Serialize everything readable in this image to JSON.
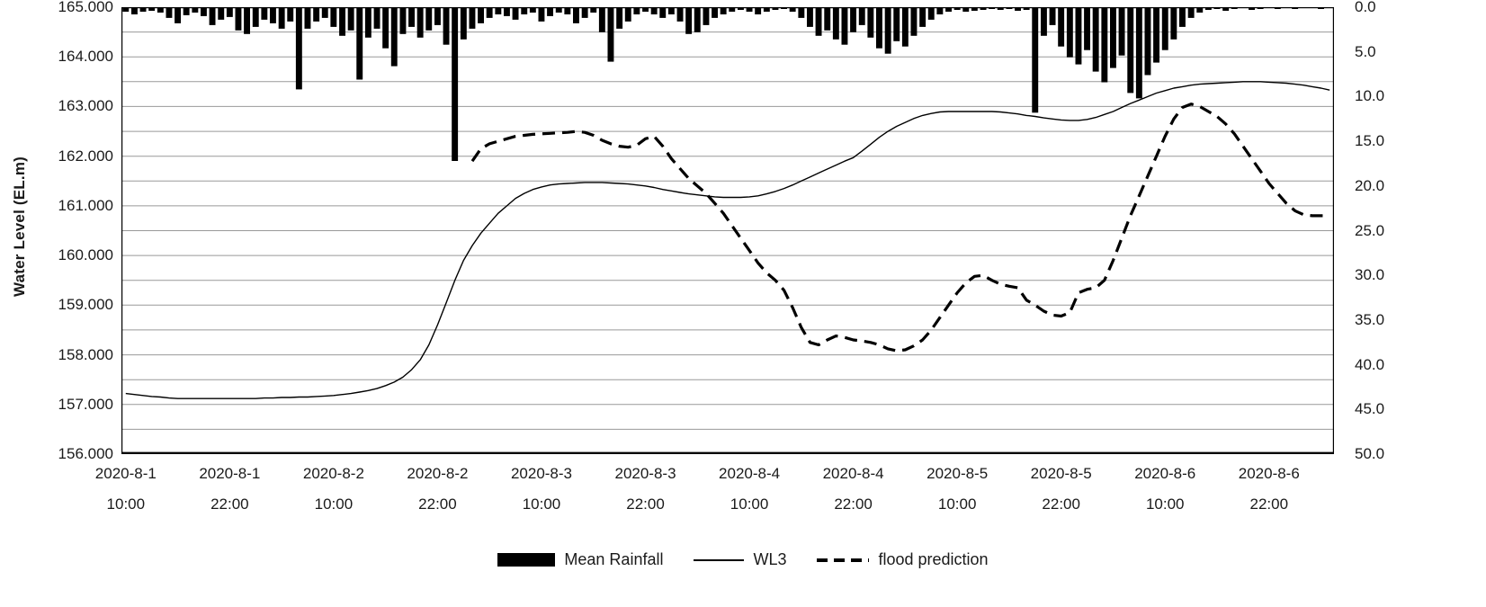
{
  "colors": {
    "grid": "#999999",
    "axis": "#000000",
    "series": "#000000",
    "background": "#ffffff",
    "text": "#1a1a1a"
  },
  "chart_data": {
    "type": "combo",
    "title": "",
    "grid": true,
    "legend_position": "bottom",
    "hours_total": 140,
    "tick_interval_hours": 12,
    "x_axis": {
      "start": "2020-8-1 10:00",
      "interval": "1 hour"
    },
    "left_axis": {
      "label": "Water Level (EL.m)",
      "min": 156,
      "max": 165,
      "gridline_step": 0.5,
      "ticks": [
        "165.000",
        "164.000",
        "163.000",
        "162.000",
        "161.000",
        "160.000",
        "159.000",
        "158.000",
        "157.000",
        "156.000"
      ]
    },
    "right_axis": {
      "label": "",
      "min": 0,
      "max": 50,
      "inverted": true,
      "ticks": [
        "0.0",
        "5.0",
        "10.0",
        "15.0",
        "20.0",
        "25.0",
        "30.0",
        "35.0",
        "40.0",
        "45.0",
        "50.0"
      ]
    },
    "x_ticks": [
      {
        "date": "2020-8-1",
        "time": "10:00"
      },
      {
        "date": "2020-8-1",
        "time": "22:00"
      },
      {
        "date": "2020-8-2",
        "time": "10:00"
      },
      {
        "date": "2020-8-2",
        "time": "22:00"
      },
      {
        "date": "2020-8-3",
        "time": "10:00"
      },
      {
        "date": "2020-8-3",
        "time": "22:00"
      },
      {
        "date": "2020-8-4",
        "time": "10:00"
      },
      {
        "date": "2020-8-4",
        "time": "22:00"
      },
      {
        "date": "2020-8-5",
        "time": "10:00"
      },
      {
        "date": "2020-8-5",
        "time": "22:00"
      },
      {
        "date": "2020-8-6",
        "time": "10:00"
      },
      {
        "date": "2020-8-6",
        "time": "22:00"
      }
    ],
    "series": [
      {
        "name": "Mean Rainfall",
        "type": "bar",
        "axis": "right",
        "color": "#000000",
        "values": [
          0.5,
          0.8,
          0.5,
          0.4,
          0.6,
          1.2,
          1.8,
          0.9,
          0.6,
          1.0,
          2.0,
          1.4,
          1.1,
          2.6,
          3.0,
          2.2,
          1.4,
          1.8,
          2.4,
          1.6,
          9.2,
          2.4,
          1.6,
          1.2,
          2.2,
          3.2,
          2.6,
          8.1,
          3.4,
          2.4,
          4.6,
          6.6,
          3.0,
          2.2,
          3.4,
          2.6,
          2.0,
          4.2,
          17.2,
          3.6,
          2.4,
          1.8,
          1.2,
          0.8,
          1.0,
          1.4,
          0.8,
          0.6,
          1.6,
          1.0,
          0.6,
          0.8,
          1.8,
          1.2,
          0.6,
          2.8,
          6.1,
          2.4,
          1.6,
          0.8,
          0.5,
          0.8,
          1.2,
          0.8,
          1.6,
          3.0,
          2.8,
          2.0,
          1.2,
          0.8,
          0.5,
          0.3,
          0.5,
          0.8,
          0.5,
          0.3,
          0.2,
          0.5,
          1.2,
          2.2,
          3.2,
          2.6,
          3.6,
          4.2,
          2.8,
          2.0,
          3.4,
          4.6,
          5.2,
          3.8,
          4.4,
          3.2,
          2.2,
          1.4,
          0.8,
          0.5,
          0.3,
          0.5,
          0.4,
          0.3,
          0.2,
          0.3,
          0.2,
          0.4,
          0.3,
          11.8,
          3.2,
          2.0,
          4.4,
          5.6,
          6.4,
          4.8,
          7.2,
          8.4,
          6.8,
          5.4,
          9.6,
          10.2,
          7.6,
          6.2,
          4.8,
          3.6,
          2.2,
          1.2,
          0.6,
          0.3,
          0.2,
          0.4,
          0.2,
          0.1,
          0.3,
          0.2,
          0.1,
          0.2,
          0.1,
          0.2,
          0.1,
          0.1,
          0.2,
          0.1
        ]
      },
      {
        "name": "WL3",
        "type": "line",
        "style": "solid",
        "axis": "left",
        "color": "#000000",
        "values": [
          157.22,
          157.2,
          157.18,
          157.16,
          157.15,
          157.13,
          157.12,
          157.12,
          157.12,
          157.12,
          157.12,
          157.12,
          157.12,
          157.12,
          157.12,
          157.12,
          157.13,
          157.13,
          157.14,
          157.14,
          157.15,
          157.15,
          157.16,
          157.17,
          157.18,
          157.2,
          157.22,
          157.25,
          157.28,
          157.32,
          157.38,
          157.45,
          157.55,
          157.7,
          157.9,
          158.2,
          158.6,
          159.05,
          159.5,
          159.9,
          160.2,
          160.45,
          160.65,
          160.85,
          161.0,
          161.15,
          161.25,
          161.33,
          161.38,
          161.42,
          161.44,
          161.45,
          161.46,
          161.47,
          161.47,
          161.47,
          161.46,
          161.45,
          161.44,
          161.42,
          161.4,
          161.37,
          161.33,
          161.3,
          161.27,
          161.24,
          161.22,
          161.2,
          161.18,
          161.17,
          161.17,
          161.17,
          161.18,
          161.2,
          161.24,
          161.29,
          161.35,
          161.42,
          161.5,
          161.58,
          161.66,
          161.74,
          161.82,
          161.9,
          161.97,
          162.1,
          162.24,
          162.38,
          162.5,
          162.6,
          162.68,
          162.76,
          162.82,
          162.86,
          162.89,
          162.9,
          162.9,
          162.9,
          162.9,
          162.9,
          162.9,
          162.89,
          162.87,
          162.85,
          162.82,
          162.8,
          162.77,
          162.75,
          162.73,
          162.72,
          162.72,
          162.74,
          162.78,
          162.84,
          162.9,
          162.98,
          163.06,
          163.13,
          163.2,
          163.27,
          163.32,
          163.37,
          163.4,
          163.43,
          163.45,
          163.46,
          163.47,
          163.48,
          163.49,
          163.5,
          163.5,
          163.5,
          163.49,
          163.48,
          163.47,
          163.45,
          163.43,
          163.4,
          163.37,
          163.33
        ]
      },
      {
        "name": "flood prediction",
        "type": "line",
        "style": "dashed",
        "axis": "left",
        "color": "#000000",
        "values": [
          null,
          null,
          null,
          null,
          null,
          null,
          null,
          null,
          null,
          null,
          null,
          null,
          null,
          null,
          null,
          null,
          null,
          null,
          null,
          null,
          null,
          null,
          null,
          null,
          null,
          null,
          null,
          null,
          null,
          null,
          null,
          null,
          null,
          null,
          null,
          null,
          null,
          null,
          null,
          null,
          161.9,
          162.15,
          162.25,
          162.3,
          162.35,
          162.4,
          162.42,
          162.44,
          162.45,
          162.46,
          162.47,
          162.48,
          162.5,
          162.48,
          162.42,
          162.32,
          162.25,
          162.2,
          162.18,
          162.22,
          162.35,
          162.4,
          162.2,
          161.95,
          161.75,
          161.55,
          161.4,
          161.25,
          161.05,
          160.85,
          160.6,
          160.35,
          160.1,
          159.85,
          159.65,
          159.5,
          159.3,
          158.95,
          158.55,
          158.25,
          158.2,
          158.3,
          158.38,
          158.35,
          158.3,
          158.28,
          158.25,
          158.2,
          158.12,
          158.08,
          158.1,
          158.18,
          158.3,
          158.5,
          158.75,
          159.0,
          159.25,
          159.45,
          159.58,
          159.6,
          159.5,
          159.42,
          159.38,
          159.35,
          159.1,
          159.0,
          158.88,
          158.8,
          158.78,
          158.85,
          159.25,
          159.32,
          159.35,
          159.5,
          159.9,
          160.35,
          160.8,
          161.2,
          161.6,
          162.0,
          162.4,
          162.75,
          162.98,
          163.05,
          163.0,
          162.9,
          162.8,
          162.65,
          162.45,
          162.2,
          161.95,
          161.7,
          161.45,
          161.25,
          161.05,
          160.9,
          160.82,
          160.8,
          160.8,
          160.8
        ]
      }
    ]
  },
  "legend": {
    "items": [
      {
        "label": "Mean Rainfall",
        "swatch": "bar"
      },
      {
        "label": "WL3",
        "swatch": "solid-line"
      },
      {
        "label": "flood prediction",
        "swatch": "dashed-line"
      }
    ]
  }
}
